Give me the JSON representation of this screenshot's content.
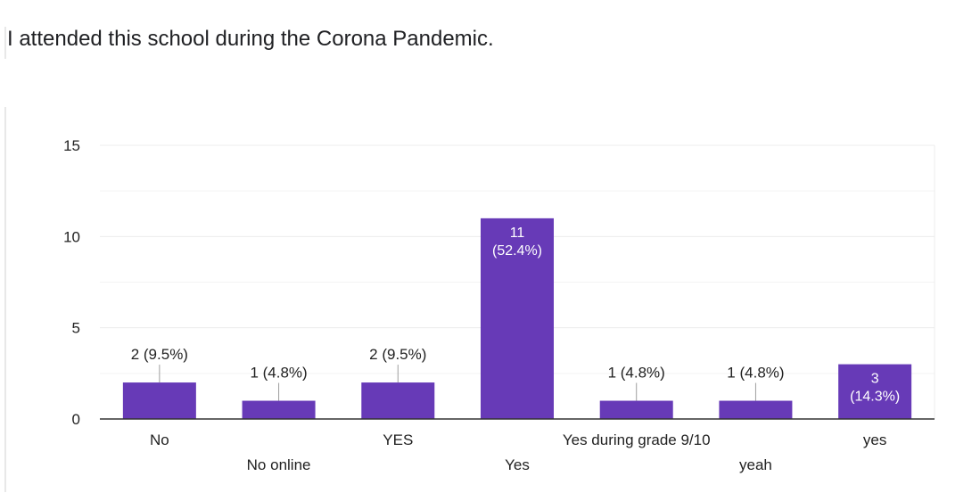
{
  "question": {
    "title": "I attended this school during the Corona Pandemic."
  },
  "colors": {
    "bar": "#673ab7",
    "grid": "#ececec",
    "axis": "#333333",
    "text": "#222222",
    "label_inside": "#ffffff"
  },
  "chart_data": {
    "type": "bar",
    "categories": [
      "No",
      "No online",
      "YES",
      "Yes",
      "Yes during grade 9/10",
      "yeah",
      "yes"
    ],
    "values": [
      2,
      1,
      2,
      11,
      1,
      1,
      3
    ],
    "data_labels": [
      "2 (9.5%)",
      "1 (4.8%)",
      "2 (9.5%)",
      "11\n(52.4%)",
      "1 (4.8%)",
      "1 (4.8%)",
      "3\n(14.3%)"
    ],
    "label_inside": [
      false,
      false,
      false,
      true,
      false,
      false,
      true
    ],
    "ylim": [
      0,
      15
    ],
    "yticks": [
      0,
      5,
      10,
      15
    ],
    "grid": true,
    "title": "",
    "xlabel": "",
    "ylabel": ""
  }
}
